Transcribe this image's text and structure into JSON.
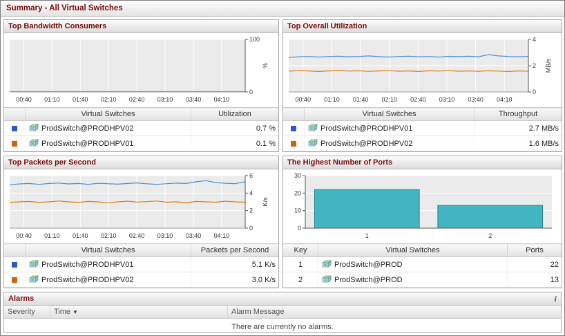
{
  "page_title": "Summary - All Virtual Switches",
  "panels": {
    "bandwidth": {
      "title": "Top Bandwidth Consumers",
      "col_name": "Virtual Switches",
      "col_value": "Utilization",
      "rows": [
        {
          "legend_color": "#2e58c8",
          "name": "ProdSwitch@PRODHPV02",
          "value": "0.7 %"
        },
        {
          "legend_color": "#d2620a",
          "name": "ProdSwitch@PRODHPV01",
          "value": "0.1 %"
        }
      ]
    },
    "utilization": {
      "title": "Top Overall Utilization",
      "col_name": "Virtual Switches",
      "col_value": "Throughput",
      "rows": [
        {
          "legend_color": "#2e58c8",
          "name": "ProdSwitch@PRODHPV01",
          "value": "2.7 MB/s"
        },
        {
          "legend_color": "#d2620a",
          "name": "ProdSwitch@PRODHPV02",
          "value": "1.6 MB/s"
        }
      ]
    },
    "packets": {
      "title": "Top Packets per Second",
      "col_name": "Virtual Switches",
      "col_value": "Packets per Second",
      "rows": [
        {
          "legend_color": "#2e58c8",
          "name": "ProdSwitch@PRODHPV01",
          "value": "5.1 K/s"
        },
        {
          "legend_color": "#d2620a",
          "name": "ProdSwitch@PRODHPV02",
          "value": "3.0 K/s"
        }
      ]
    },
    "ports": {
      "title": "The Highest Number of Ports",
      "col_key": "Key",
      "col_name": "Virtual Switches",
      "col_value": "Ports",
      "rows": [
        {
          "key": "1",
          "name": "ProdSwitch@PROD",
          "value": "22"
        },
        {
          "key": "2",
          "name": "ProdSwitch@PROD",
          "value": "13"
        }
      ]
    }
  },
  "alarms": {
    "title": "Alarms",
    "info_icon": "i",
    "col_severity": "Severity",
    "col_time": "Time",
    "col_message": "Alarm Message",
    "empty_message": "There are currently no alarms."
  },
  "chart_data": [
    {
      "type": "line",
      "title": "Top Bandwidth Consumers",
      "ylabel": "%",
      "ylim": [
        0,
        100
      ],
      "yticks": [
        0,
        100
      ],
      "x_labels": [
        "00:40",
        "01:10",
        "01:40",
        "02:10",
        "02:40",
        "03:10",
        "03:40",
        "04:10"
      ],
      "series": [
        {
          "name": "ProdSwitch@PRODHPV02",
          "color": "#4a90d2",
          "values": [
            0.7,
            0.7,
            0.71,
            0.69,
            0.7,
            0.7,
            0.72,
            0.7,
            0.69,
            0.7,
            0.71,
            0.7,
            0.7,
            0.69,
            0.7,
            0.71,
            0.7,
            0.7,
            0.72,
            0.7,
            0.69,
            0.7,
            0.7,
            0.71,
            0.7
          ]
        },
        {
          "name": "ProdSwitch@PRODHPV01",
          "color": "#dd7d0e",
          "values": [
            0.1,
            0.1,
            0.11,
            0.1,
            0.09,
            0.1,
            0.1,
            0.11,
            0.1,
            0.1,
            0.09,
            0.1,
            0.1,
            0.11,
            0.1,
            0.1,
            0.09,
            0.1,
            0.1,
            0.1,
            0.11,
            0.1,
            0.09,
            0.1,
            0.1
          ]
        }
      ]
    },
    {
      "type": "line",
      "title": "Top Overall Utilization",
      "ylabel": "MB/s",
      "ylim": [
        0,
        4
      ],
      "yticks": [
        0,
        2,
        4
      ],
      "x_labels": [
        "00:40",
        "01:10",
        "01:40",
        "02:10",
        "02:40",
        "03:10",
        "03:40",
        "04:10"
      ],
      "series": [
        {
          "name": "ProdSwitch@PRODHPV01",
          "color": "#4a90d2",
          "values": [
            2.62,
            2.68,
            2.7,
            2.66,
            2.7,
            2.72,
            2.68,
            2.7,
            2.74,
            2.69,
            2.66,
            2.7,
            2.72,
            2.68,
            2.7,
            2.66,
            2.71,
            2.69,
            2.72,
            2.68,
            2.84,
            2.74,
            2.7,
            2.68,
            2.7
          ]
        },
        {
          "name": "ProdSwitch@PRODHPV02",
          "color": "#dd7d0e",
          "values": [
            1.58,
            1.62,
            1.6,
            1.56,
            1.6,
            1.63,
            1.59,
            1.61,
            1.57,
            1.6,
            1.62,
            1.58,
            1.6,
            1.56,
            1.61,
            1.59,
            1.62,
            1.58,
            1.6,
            1.57,
            1.61,
            1.59,
            1.56,
            1.6,
            1.58
          ]
        }
      ]
    },
    {
      "type": "line",
      "title": "Top Packets per Second",
      "ylabel": "K/s",
      "ylim": [
        0,
        6
      ],
      "yticks": [
        0,
        2,
        4,
        6
      ],
      "x_labels": [
        "00:40",
        "01:10",
        "01:40",
        "02:10",
        "02:40",
        "03:10",
        "03:40",
        "04:10"
      ],
      "series": [
        {
          "name": "ProdSwitch@PRODHPV01",
          "color": "#4a90d2",
          "values": [
            4.95,
            5.05,
            5.1,
            5.0,
            5.1,
            5.15,
            5.05,
            5.1,
            5.0,
            5.12,
            5.08,
            5.02,
            5.1,
            5.16,
            5.06,
            5.0,
            5.08,
            5.14,
            5.1,
            5.3,
            5.42,
            5.2,
            5.12,
            5.08,
            5.3
          ]
        },
        {
          "name": "ProdSwitch@PRODHPV02",
          "color": "#dd7d0e",
          "values": [
            2.95,
            3.0,
            3.05,
            2.95,
            3.0,
            3.1,
            3.0,
            2.95,
            3.05,
            3.0,
            2.9,
            3.0,
            3.08,
            2.98,
            3.02,
            3.1,
            2.96,
            3.0,
            2.92,
            3.04,
            3.0,
            2.96,
            3.08,
            3.0,
            2.96
          ]
        }
      ]
    },
    {
      "type": "bar",
      "title": "The Highest Number of Ports",
      "ylabel": "",
      "ylim": [
        0,
        30
      ],
      "yticks": [
        0,
        10,
        20,
        30
      ],
      "categories": [
        "1",
        "2"
      ],
      "values": [
        22,
        13
      ],
      "bar_color": "#41b5c2",
      "bar_border": "#2f7d88"
    }
  ]
}
